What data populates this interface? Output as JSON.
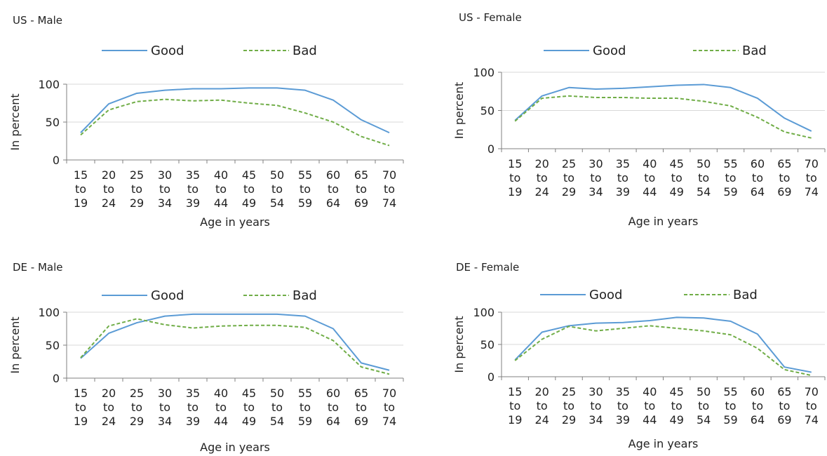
{
  "colors": {
    "good": "#5b9bd5",
    "bad": "#70ad47",
    "axis": "#808080",
    "grid": "#d9d9d9",
    "text": "#222222"
  },
  "chart_data": [
    {
      "type": "line",
      "title": "US - Male",
      "xlabel": "Age in years",
      "ylabel": "In percent",
      "ylim": [
        0,
        100
      ],
      "yticks": [
        0,
        50,
        100
      ],
      "categories": [
        "15 to 19",
        "20 to 24",
        "25 to 29",
        "30 to 34",
        "35 to 39",
        "40 to 44",
        "45 to 49",
        "50 to 54",
        "55 to 59",
        "60 to 64",
        "65 to 69",
        "70 to 74"
      ],
      "legend_position": "top",
      "series": [
        {
          "name": "Good",
          "style": "solid",
          "values": [
            36,
            74,
            88,
            92,
            94,
            94,
            95,
            95,
            92,
            79,
            53,
            36
          ]
        },
        {
          "name": "Bad",
          "style": "dashed",
          "values": [
            33,
            66,
            77,
            80,
            78,
            79,
            75,
            72,
            62,
            50,
            31,
            19
          ]
        }
      ]
    },
    {
      "type": "line",
      "title": "US - Female",
      "xlabel": "Age in years",
      "ylabel": "In percent",
      "ylim": [
        0,
        100
      ],
      "yticks": [
        0,
        50,
        100
      ],
      "categories": [
        "15 to 19",
        "20 to 24",
        "25 to 29",
        "30 to 34",
        "35 to 39",
        "40 to 44",
        "45 to 49",
        "50 to 54",
        "55 to 59",
        "60 to 64",
        "65 to 69",
        "70 to 74"
      ],
      "legend_position": "top",
      "series": [
        {
          "name": "Good",
          "style": "solid",
          "values": [
            37,
            69,
            80,
            78,
            79,
            81,
            83,
            84,
            80,
            66,
            40,
            23
          ]
        },
        {
          "name": "Bad",
          "style": "dashed",
          "values": [
            36,
            66,
            69,
            67,
            67,
            66,
            66,
            62,
            56,
            41,
            22,
            14
          ]
        }
      ]
    },
    {
      "type": "line",
      "title": "DE - Male",
      "xlabel": "Age in years",
      "ylabel": "In percent",
      "ylim": [
        0,
        100
      ],
      "yticks": [
        0,
        50,
        100
      ],
      "categories": [
        "15 to 19",
        "20 to 24",
        "25 to 29",
        "30 to 34",
        "35 to 39",
        "40 to 44",
        "45 to 49",
        "50 to 54",
        "55 to 59",
        "60 to 64",
        "65 to 69",
        "70 to 74"
      ],
      "legend_position": "top",
      "series": [
        {
          "name": "Good",
          "style": "solid",
          "values": [
            30,
            68,
            84,
            94,
            97,
            97,
            97,
            97,
            94,
            75,
            23,
            12
          ]
        },
        {
          "name": "Bad",
          "style": "dashed",
          "values": [
            31,
            79,
            90,
            81,
            76,
            79,
            80,
            80,
            77,
            57,
            17,
            6
          ]
        }
      ]
    },
    {
      "type": "line",
      "title": "DE - Female",
      "xlabel": "Age in years",
      "ylabel": "In percent",
      "ylim": [
        0,
        100
      ],
      "yticks": [
        0,
        50,
        100
      ],
      "categories": [
        "15 to 19",
        "20 to 24",
        "25 to 29",
        "30 to 34",
        "35 to 39",
        "40 to 44",
        "45 to 49",
        "50 to 54",
        "55 to 59",
        "60 to 64",
        "65 to 69",
        "70 to 74"
      ],
      "legend_position": "top",
      "series": [
        {
          "name": "Good",
          "style": "solid",
          "values": [
            26,
            69,
            79,
            83,
            84,
            87,
            92,
            91,
            86,
            66,
            15,
            7
          ]
        },
        {
          "name": "Bad",
          "style": "dashed",
          "values": [
            25,
            58,
            78,
            71,
            75,
            79,
            75,
            71,
            65,
            44,
            11,
            2
          ]
        }
      ]
    }
  ]
}
